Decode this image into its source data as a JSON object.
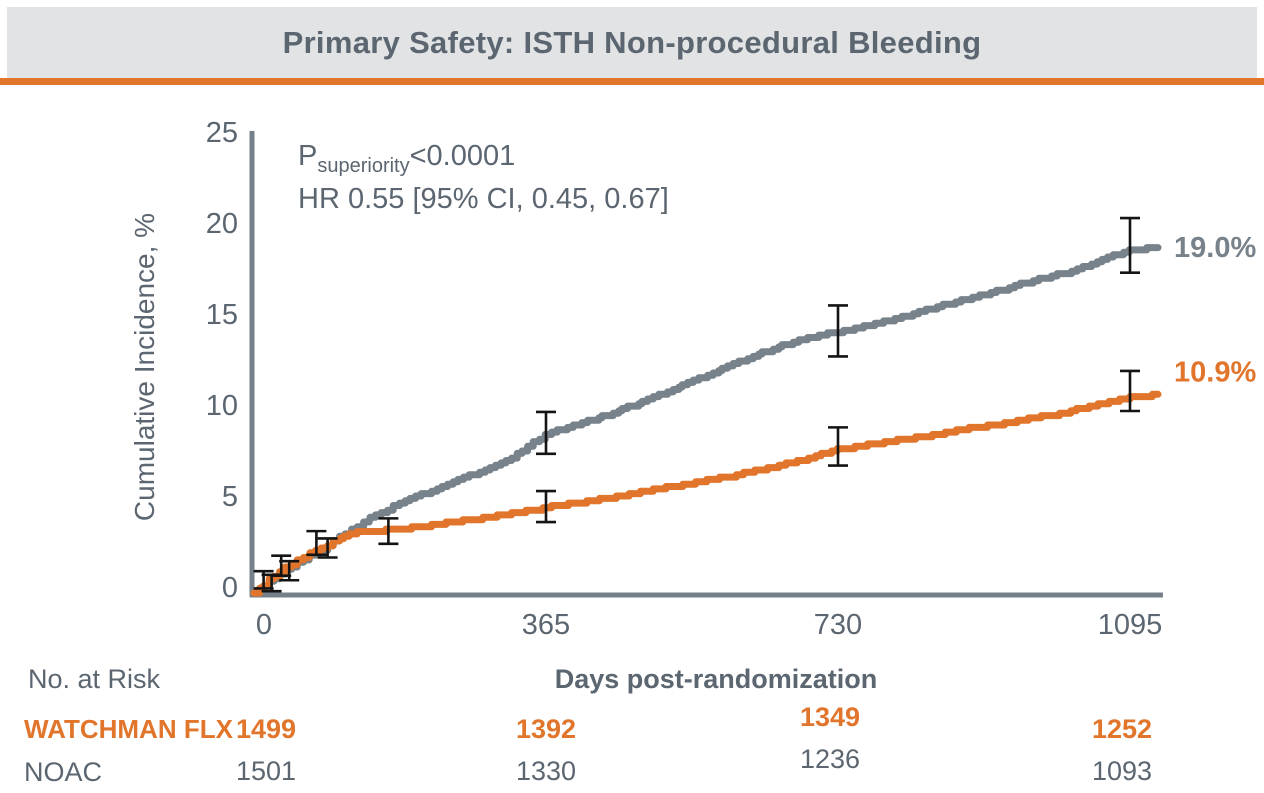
{
  "header": {
    "title": "Primary Safety: ISTH Non-procedural Bleeding"
  },
  "colors": {
    "accent_orange": "#E0752B",
    "curve_gray": "#77828B",
    "text_gray": "#5B6670",
    "title_bar_bg": "#E2E3E4",
    "axis_gray": "#75808A",
    "error_bar_black": "#141414"
  },
  "chart_data": {
    "type": "line",
    "title": "Primary Safety: ISTH Non-procedural Bleeding",
    "xlabel": "Days post-randomization",
    "ylabel": "Cumulative Incidence, %",
    "xlim": [
      0,
      1130
    ],
    "ylim": [
      0,
      25
    ],
    "x_ticks": [
      0,
      365,
      730,
      1095
    ],
    "y_ticks": [
      0,
      5,
      10,
      15,
      20,
      25
    ],
    "grid": false,
    "legend_position": "none",
    "annotations": {
      "p_prefix": "P",
      "p_sub": "superiority",
      "p_value": "<0.0001",
      "hr_text": "HR 0.55 [95% CI, 0.45, 0.67]"
    },
    "series": [
      {
        "name": "NOAC",
        "color": "#77828B",
        "end_label": "19.0%",
        "x": [
          0,
          12,
          25,
          40,
          55,
          70,
          85,
          100,
          115,
          130,
          145,
          160,
          175,
          195,
          215,
          235,
          255,
          275,
          295,
          315,
          335,
          350,
          365,
          385,
          410,
          435,
          460,
          485,
          510,
          535,
          560,
          585,
          610,
          635,
          660,
          685,
          710,
          730,
          755,
          780,
          810,
          840,
          870,
          900,
          930,
          960,
          990,
          1015,
          1040,
          1060,
          1080,
          1095,
          1130
        ],
        "y": [
          0,
          0.35,
          0.8,
          1.3,
          1.7,
          2.05,
          2.4,
          2.85,
          3.3,
          3.7,
          4.1,
          4.45,
          4.8,
          5.15,
          5.5,
          5.85,
          6.2,
          6.55,
          6.9,
          7.3,
          7.8,
          8.3,
          8.75,
          9.0,
          9.35,
          9.7,
          10.1,
          10.5,
          10.95,
          11.4,
          11.85,
          12.3,
          12.75,
          13.2,
          13.6,
          13.95,
          14.2,
          14.35,
          14.6,
          14.85,
          15.15,
          15.55,
          15.9,
          16.25,
          16.6,
          17.0,
          17.35,
          17.6,
          17.95,
          18.3,
          18.65,
          18.85,
          19.0
        ]
      },
      {
        "name": "WATCHMAN FLX",
        "color": "#E0752B",
        "end_label": "10.9%",
        "x": [
          0,
          12,
          25,
          40,
          55,
          70,
          85,
          100,
          112,
          122,
          140,
          165,
          190,
          215,
          240,
          265,
          290,
          315,
          340,
          365,
          395,
          425,
          455,
          485,
          515,
          545,
          575,
          605,
          635,
          665,
          695,
          715,
          730,
          760,
          790,
          820,
          850,
          880,
          910,
          940,
          970,
          1000,
          1030,
          1055,
          1075,
          1095,
          1130
        ],
        "y": [
          0,
          0.45,
          0.95,
          1.4,
          1.8,
          2.15,
          2.5,
          2.85,
          3.1,
          3.3,
          3.4,
          3.45,
          3.55,
          3.7,
          3.85,
          4.0,
          4.15,
          4.3,
          4.5,
          4.7,
          4.9,
          5.1,
          5.3,
          5.55,
          5.8,
          6.0,
          6.25,
          6.5,
          6.8,
          7.1,
          7.45,
          7.7,
          7.9,
          8.1,
          8.3,
          8.5,
          8.7,
          8.95,
          9.15,
          9.35,
          9.6,
          9.8,
          10.1,
          10.35,
          10.55,
          10.75,
          10.9
        ]
      }
    ],
    "error_bars": [
      {
        "series": "NOAC",
        "x": 12,
        "lo": 0.25,
        "hi": 1.2
      },
      {
        "series": "NOAC",
        "x": 34,
        "lo": 0.95,
        "hi": 2.05
      },
      {
        "series": "NOAC",
        "x": 78,
        "lo": 2.1,
        "hi": 3.4
      },
      {
        "series": "NOAC",
        "x": 365,
        "lo": 7.65,
        "hi": 9.95
      },
      {
        "series": "NOAC",
        "x": 730,
        "lo": 13.0,
        "hi": 15.8
      },
      {
        "series": "NOAC",
        "x": 1095,
        "lo": 17.6,
        "hi": 20.6
      },
      {
        "series": "WATCHMAN FLX",
        "x": 22,
        "lo": 0.1,
        "hi": 1.0
      },
      {
        "series": "WATCHMAN FLX",
        "x": 44,
        "lo": 0.7,
        "hi": 1.75
      },
      {
        "series": "WATCHMAN FLX",
        "x": 92,
        "lo": 1.95,
        "hi": 3.0
      },
      {
        "series": "WATCHMAN FLX",
        "x": 168,
        "lo": 2.7,
        "hi": 4.1
      },
      {
        "series": "WATCHMAN FLX",
        "x": 365,
        "lo": 3.9,
        "hi": 5.6
      },
      {
        "series": "WATCHMAN FLX",
        "x": 730,
        "lo": 7.0,
        "hi": 9.1
      },
      {
        "series": "WATCHMAN FLX",
        "x": 1095,
        "lo": 10.0,
        "hi": 12.2
      }
    ]
  },
  "risk_table": {
    "title": "No. at Risk",
    "timepoints": [
      "0",
      "365",
      "730",
      "1095"
    ],
    "rows": [
      {
        "label": "WATCHMAN FLX",
        "color": "#E0752B",
        "values": [
          "1499",
          "1392",
          "1349",
          "1252"
        ]
      },
      {
        "label": "NOAC",
        "color": "#5B6670",
        "values": [
          "1501",
          "1330",
          "1236",
          "1093"
        ]
      }
    ]
  }
}
